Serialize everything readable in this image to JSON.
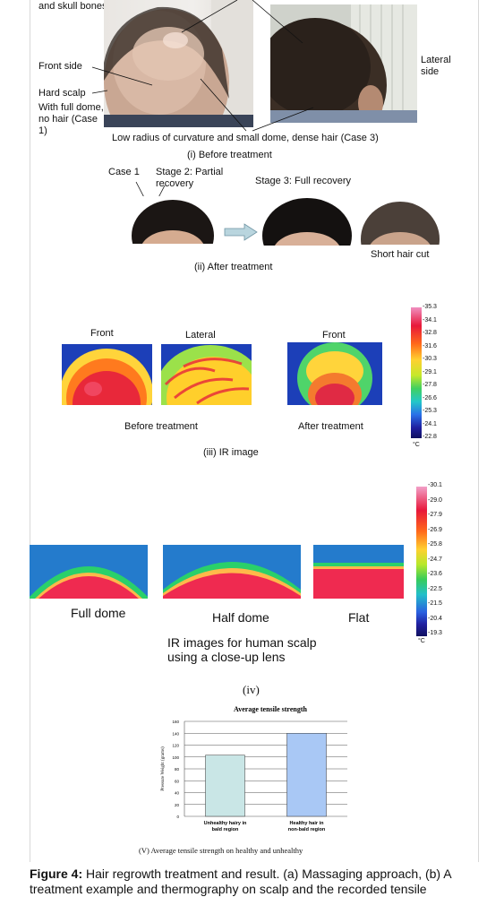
{
  "panel_i": {
    "label_skull": "and skull bones",
    "label_front_side": "Front side",
    "label_hard_scalp": "Hard scalp",
    "label_full_dome": "With full dome, no hair (Case 1)",
    "label_lateral_side": "Lateral side",
    "label_low_radius": "Low radius of curvature and small dome, dense hair (Case 3)",
    "caption": "(i) Before treatment"
  },
  "panel_ii": {
    "label_case1": "Case 1",
    "label_stage2": "Stage 2: Partial recovery",
    "label_stage3": "Stage 3: Full recovery",
    "label_short_hair": "Short hair cut",
    "caption": "(ii) After treatment"
  },
  "panel_iii": {
    "label_front_left": "Front",
    "label_lateral": "Lateral",
    "label_front_right": "Front",
    "label_before": "Before treatment",
    "label_after": "After treatment",
    "caption": "(iii) IR image",
    "scale_ticks": [
      "35.3",
      "34.1",
      "32.8",
      "31.6",
      "30.3",
      "29.1",
      "27.8",
      "26.6",
      "25.3",
      "24.1",
      "22.8"
    ],
    "scale_unit": "°C"
  },
  "panel_iv": {
    "label_full_dome": "Full dome",
    "label_half_dome": "Half dome",
    "label_flat": "Flat",
    "ir_caption": "IR images for human scalp using a close-up lens",
    "caption": "(iv)",
    "scale_ticks": [
      "30.1",
      "29.0",
      "27.9",
      "26.9",
      "25.8",
      "24.7",
      "23.6",
      "22.5",
      "21.5",
      "20.4",
      "19.3"
    ],
    "scale_unit": "°C"
  },
  "chart_data": {
    "type": "bar",
    "title": "Average tensile strength",
    "ylabel": "Pressure Weight (grams)",
    "categories": [
      "Unhealthy hairy in bald region",
      "Healthy hair in non-bald region"
    ],
    "values": [
      103,
      140
    ],
    "ylim": [
      0,
      160
    ],
    "yticks": [
      "0",
      "20",
      "40",
      "60",
      "80",
      "100",
      "120",
      "140",
      "160"
    ],
    "grid": true,
    "colors": [
      "#c9e6e6",
      "#a9c8f5"
    ]
  },
  "panel_v": {
    "caption": "(V) Average tensile strength on healthy and unhealthy"
  },
  "figure": {
    "label": "Figure 4:",
    "caption": "Hair regrowth treatment and result. (a) Massaging approach, (b) A treatment example and thermography on scalp and the recorded tensile"
  }
}
